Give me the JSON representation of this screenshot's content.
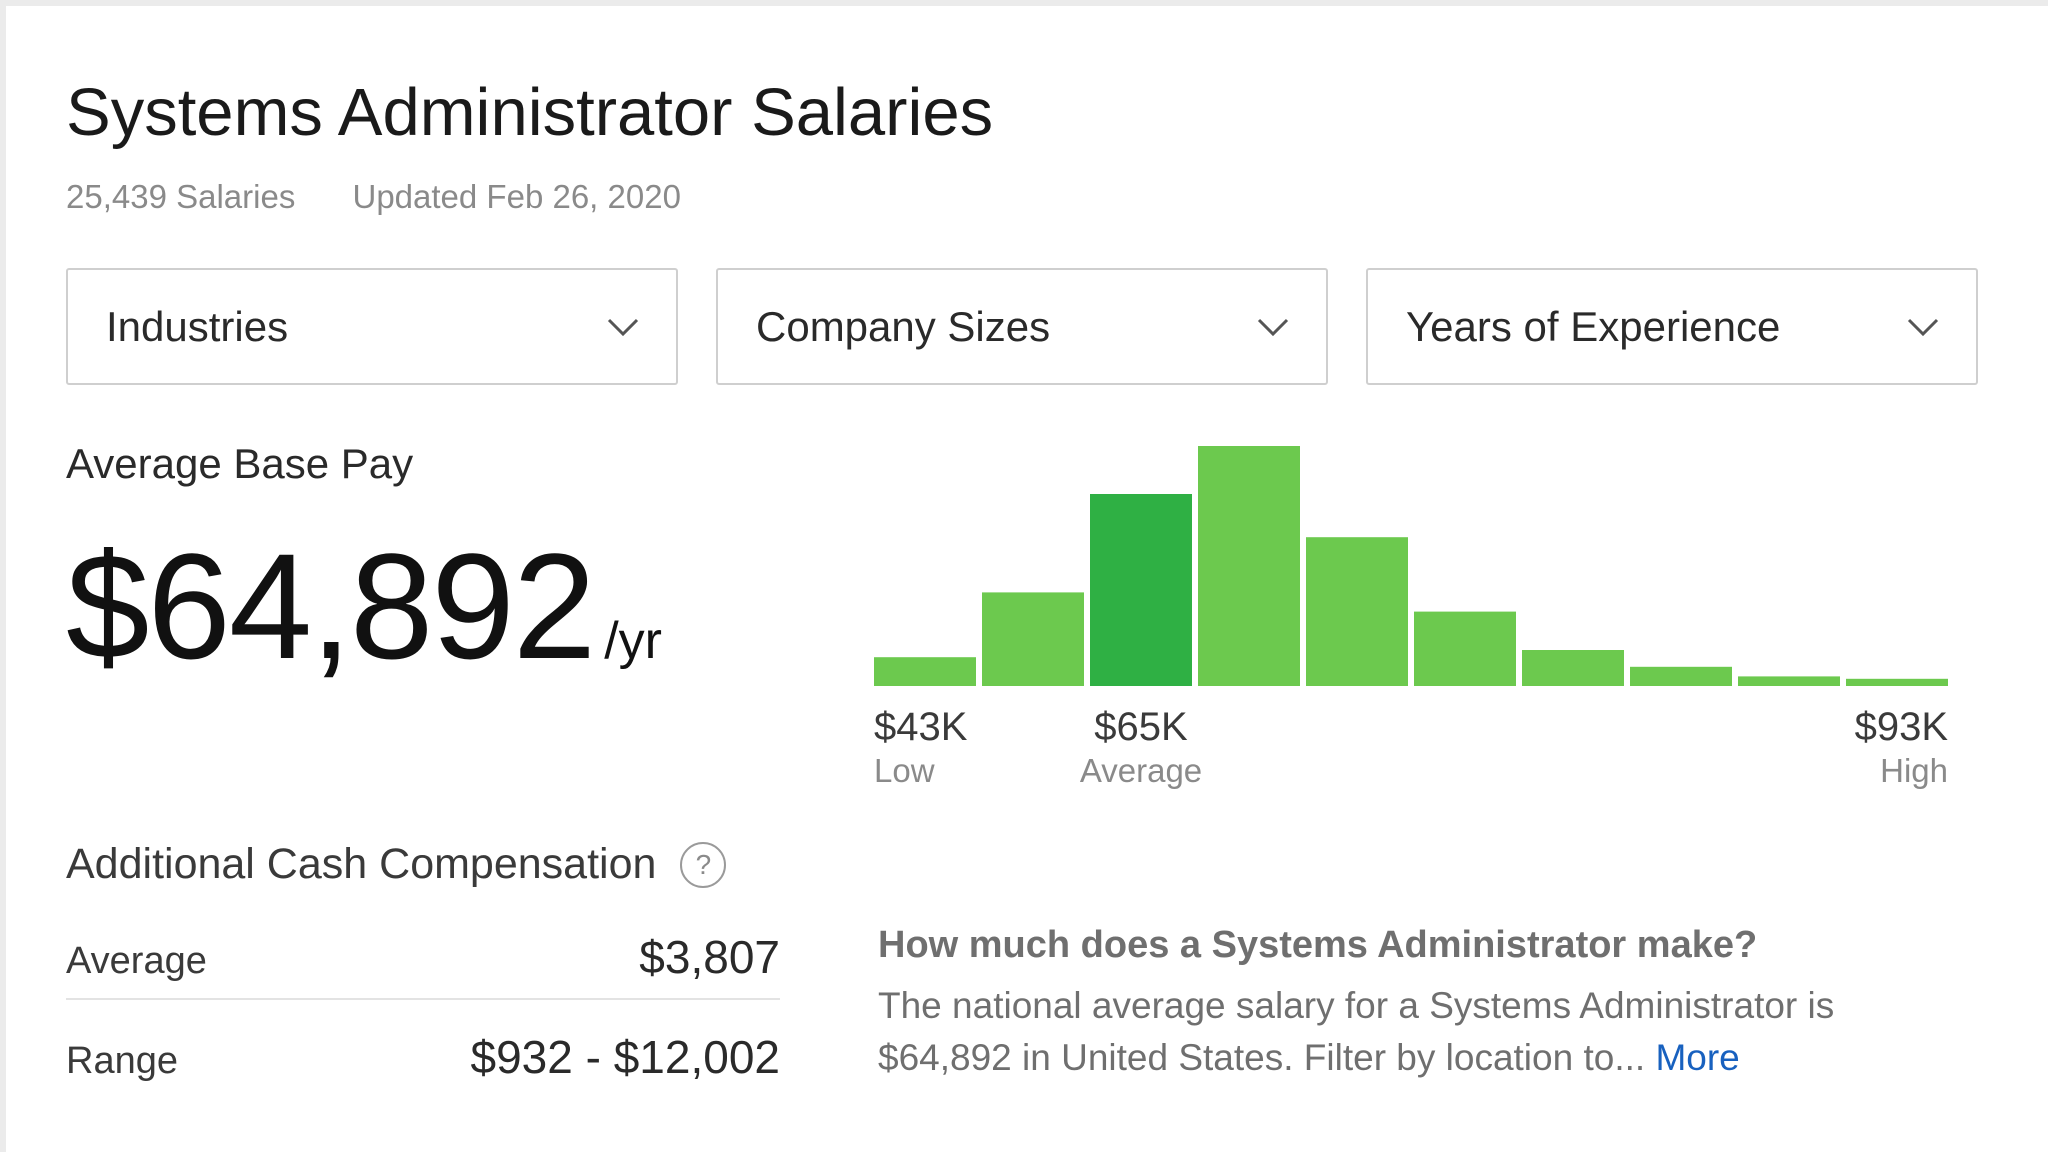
{
  "header": {
    "title": "Systems Administrator Salaries",
    "salary_count": "25,439 Salaries",
    "updated": "Updated Feb 26, 2020"
  },
  "filters": [
    {
      "label": "Industries",
      "icon": "chevron-down-icon"
    },
    {
      "label": "Company Sizes",
      "icon": "chevron-down-icon"
    },
    {
      "label": "Years of Experience",
      "icon": "chevron-down-icon"
    }
  ],
  "base_pay": {
    "label": "Average Base Pay",
    "amount": "$64,892",
    "unit": "/yr"
  },
  "chart_data": {
    "type": "bar",
    "title": "",
    "xlabel": "",
    "ylabel": "",
    "ylim": [
      0,
      100
    ],
    "values": [
      12,
      39,
      80,
      100,
      62,
      31,
      15,
      8,
      4,
      3
    ],
    "highlight_index": 2,
    "colors": {
      "bar": "#6cc94e",
      "highlight": "#2fb044"
    },
    "axis_labels": [
      {
        "value": "$43K",
        "caption": "Low",
        "bar_index": 0,
        "align": "start"
      },
      {
        "value": "$65K",
        "caption": "Average",
        "bar_index": 2,
        "align": "center"
      },
      {
        "value": "$93K",
        "caption": "High",
        "bar_index": 9,
        "align": "end"
      }
    ]
  },
  "additional_comp": {
    "title": "Additional Cash Compensation",
    "help_icon": "question-icon",
    "help_glyph": "?",
    "average_label": "Average",
    "average_value": "$3,807",
    "range_label": "Range",
    "range_value": "$932 - $12,002"
  },
  "faq": {
    "question": "How much does a Systems Administrator make?",
    "answer": "The national average salary for a Systems Administrator is $64,892 in United States. Filter by location to...",
    "more_label": "More"
  }
}
